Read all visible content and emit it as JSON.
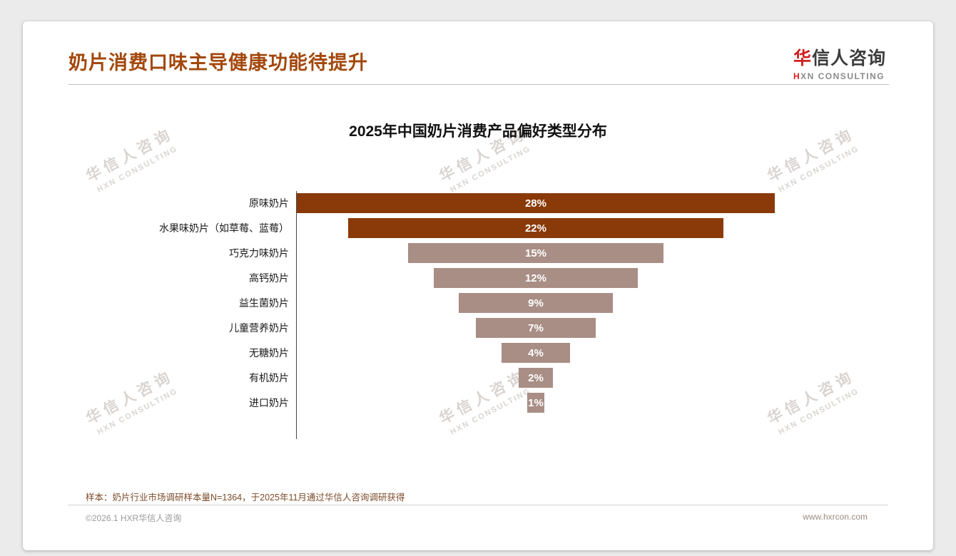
{
  "page": {
    "title": "奶片消费口味主导健康功能待提升",
    "logo": {
      "cn_first": "华",
      "cn_rest": "信人咨询",
      "en_first": "H",
      "en_rest": "XN CONSULTING"
    },
    "watermark_line1": "华信人咨询",
    "watermark_line2": "HXN CONSULTING",
    "note": "样本：奶片行业市场调研样本量N=1364，于2025年11月通过华信人咨询调研获得",
    "footer_left": "©2026.1 HXR华信人咨询",
    "footer_right": "www.hxrcon.com"
  },
  "chart_data": {
    "type": "bar",
    "variant": "centered-funnel-horizontal-bars",
    "title": "2025年中国奶片消费产品偏好类型分布",
    "categories": [
      "原味奶片",
      "水果味奶片（如草莓、蓝莓）",
      "巧克力味奶片",
      "高钙奶片",
      "益生菌奶片",
      "儿童营养奶片",
      "无糖奶片",
      "有机奶片",
      "进口奶片"
    ],
    "values": [
      28,
      22,
      15,
      12,
      9,
      7,
      4,
      2,
      1
    ],
    "labels": [
      "28%",
      "22%",
      "15%",
      "12%",
      "9%",
      "7%",
      "4%",
      "2%",
      "1%"
    ],
    "highlight_count": 2,
    "colors": {
      "highlight": "#8a3a08",
      "normal": "#a98e85"
    },
    "xlim": [
      0,
      28
    ],
    "grid": false,
    "legend": false,
    "value_label_position": "inside-center"
  }
}
